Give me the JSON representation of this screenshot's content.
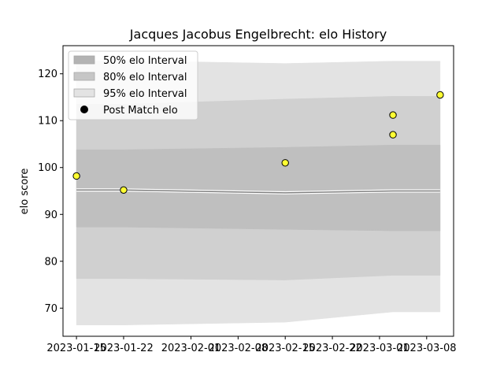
{
  "chart_data": {
    "type": "area",
    "title": "Jacques Jacobus Engelbrecht: elo History",
    "xlabel": "",
    "ylabel": "elo score",
    "xlim": [
      "2023-01-13",
      "2023-03-12"
    ],
    "ylim": [
      64,
      126
    ],
    "x_ticks": [
      "2023-01-15",
      "2023-01-22",
      "2023-02-01",
      "2023-02-08",
      "2023-02-15",
      "2023-02-22",
      "2023-03-01",
      "2023-03-08"
    ],
    "y_ticks": [
      70,
      80,
      90,
      100,
      110,
      120
    ],
    "grid": false,
    "legend_position": "upper-left",
    "x": [
      "2023-01-15",
      "2023-01-22",
      "2023-02-15",
      "2023-03-03",
      "2023-03-10"
    ],
    "mean": [
      95.2,
      95.2,
      94.6,
      95.0,
      95.0
    ],
    "bands": [
      {
        "name": "95% elo Interval",
        "lower": [
          66.4,
          66.4,
          67.0,
          69.2,
          69.2
        ],
        "upper": [
          122.8,
          122.8,
          122.2,
          122.7,
          122.7
        ],
        "color": "#e3e3e3"
      },
      {
        "name": "80% elo Interval",
        "lower": [
          76.3,
          76.3,
          76.0,
          77.0,
          77.0
        ],
        "upper": [
          113.5,
          113.5,
          114.6,
          115.2,
          115.2
        ],
        "color": "#d0d0d0"
      },
      {
        "name": "50% elo Interval",
        "lower": [
          87.3,
          87.3,
          86.8,
          86.5,
          86.5
        ],
        "upper": [
          103.8,
          103.8,
          104.3,
          104.8,
          104.8
        ],
        "color": "#bfbfbf"
      }
    ],
    "post_match": {
      "name": "Post Match elo",
      "color": "#ffff33",
      "points": [
        {
          "x": "2023-01-15",
          "y": 98.2
        },
        {
          "x": "2023-01-22",
          "y": 95.2
        },
        {
          "x": "2023-02-15",
          "y": 101.0
        },
        {
          "x": "2023-03-03",
          "y": 111.2
        },
        {
          "x": "2023-03-03",
          "y": 107.0
        },
        {
          "x": "2023-03-10",
          "y": 115.5
        }
      ]
    },
    "legend": [
      {
        "label": "50% elo Interval",
        "kind": "patch",
        "color": "#b3b3b3"
      },
      {
        "label": "80% elo Interval",
        "kind": "patch",
        "color": "#c6c6c6"
      },
      {
        "label": "95% elo Interval",
        "kind": "patch",
        "color": "#e3e3e3"
      },
      {
        "label": "Post Match elo",
        "kind": "marker",
        "color": "#000000"
      }
    ]
  }
}
